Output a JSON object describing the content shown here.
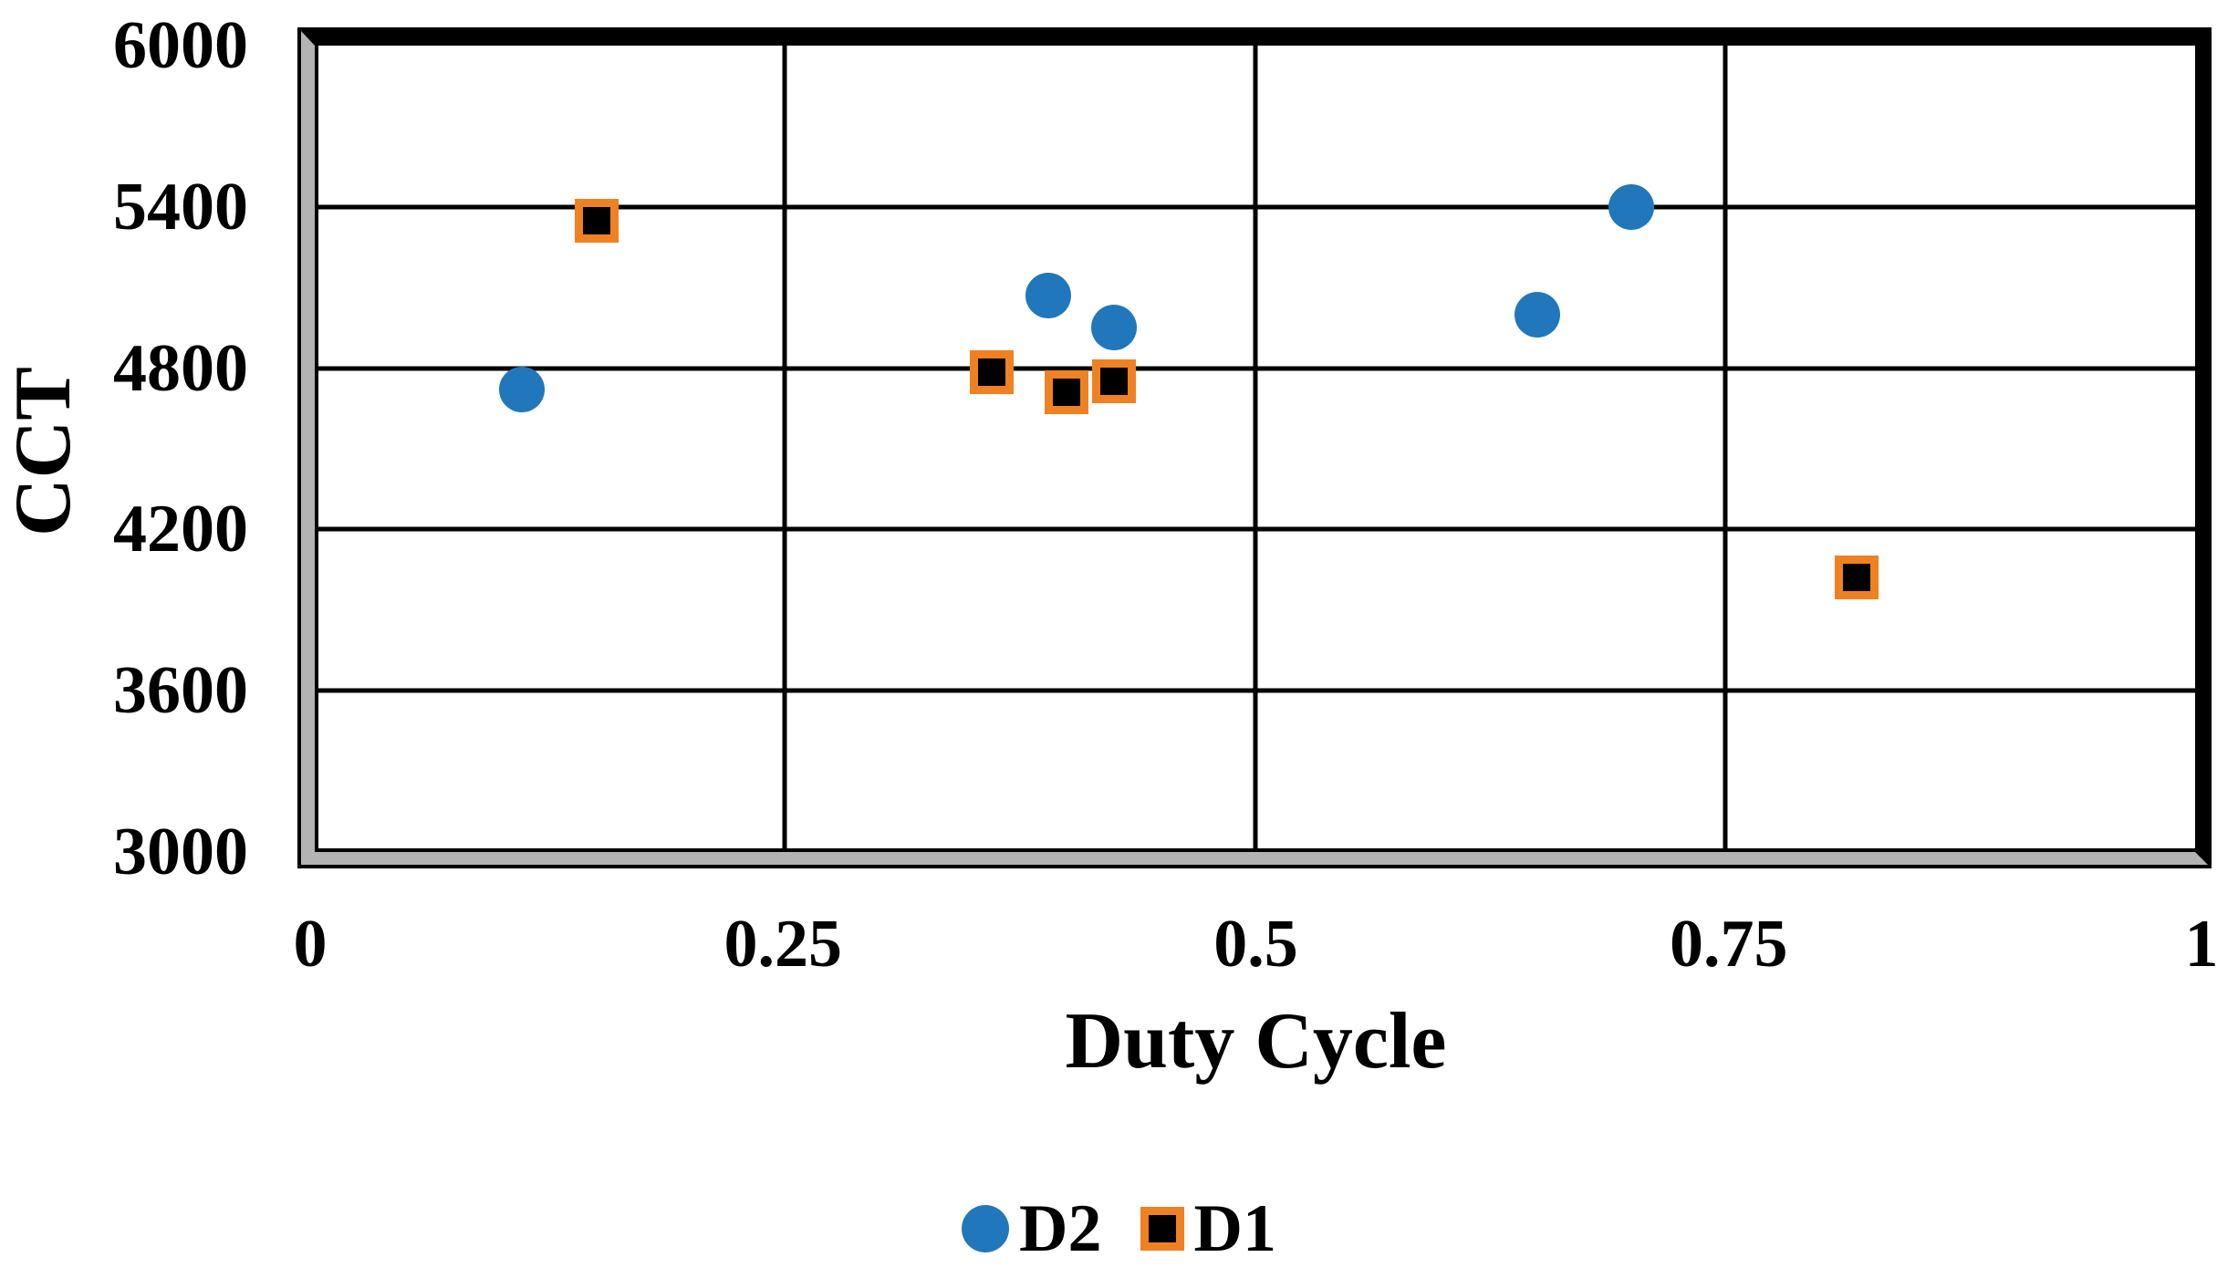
{
  "chart_data": {
    "type": "scatter",
    "title": "",
    "xlabel": "Duty Cycle",
    "ylabel": "CCT",
    "xlim": [
      0,
      1
    ],
    "ylim": [
      3000,
      6000
    ],
    "xticks": [
      0,
      0.25,
      0.5,
      0.75,
      1
    ],
    "xtick_labels": [
      "0",
      "0.25",
      "0.5",
      "0.75",
      "1"
    ],
    "yticks": [
      3000,
      3600,
      4200,
      4800,
      5400,
      6000
    ],
    "ytick_labels": [
      "3000",
      "3600",
      "4200",
      "4800",
      "5400",
      "6000"
    ],
    "grid": true,
    "legend_position": "bottom",
    "series": [
      {
        "name": "D2",
        "marker": "circle",
        "color": "#2077BC",
        "points": [
          [
            0.11,
            4720
          ],
          [
            0.39,
            5070
          ],
          [
            0.425,
            4950
          ],
          [
            0.65,
            5000
          ],
          [
            0.7,
            5400
          ]
        ]
      },
      {
        "name": "D1",
        "marker": "square",
        "fill": "#000000",
        "border_color": "#F08122",
        "points": [
          [
            0.15,
            5350
          ],
          [
            0.36,
            4785
          ],
          [
            0.4,
            4710
          ],
          [
            0.425,
            4750
          ],
          [
            0.82,
            4020
          ]
        ]
      }
    ],
    "colors": {
      "d2_blue": "#2077BC",
      "d1_orange": "#F08122",
      "gridline": "#000000",
      "frame_bevel_gray": "#B3B3B3"
    }
  }
}
